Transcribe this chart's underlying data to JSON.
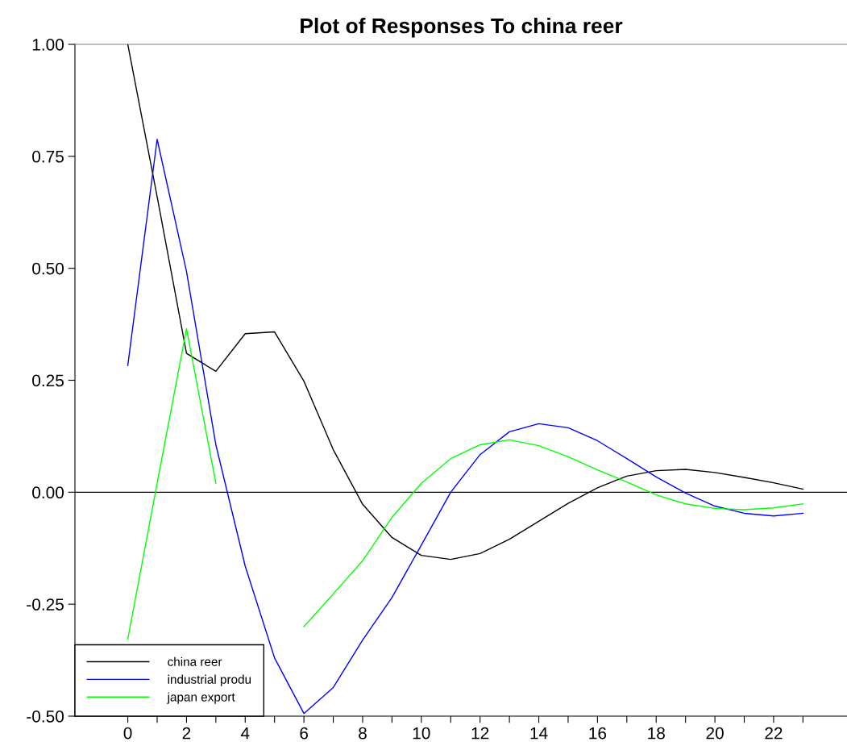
{
  "chart_data": {
    "type": "line",
    "title": "Plot of Responses To china reer",
    "x": [
      0,
      1,
      2,
      3,
      4,
      5,
      6,
      7,
      8,
      9,
      10,
      11,
      12,
      13,
      14,
      15,
      16,
      17,
      18,
      19,
      20,
      21,
      22,
      23
    ],
    "series": [
      {
        "name": "china reer",
        "color": "#000000",
        "values": [
          1.0,
          0.66,
          0.31,
          0.27,
          0.354,
          0.358,
          0.248,
          0.095,
          -0.027,
          -0.101,
          -0.141,
          -0.15,
          -0.137,
          -0.105,
          -0.065,
          -0.025,
          0.01,
          0.036,
          0.048,
          0.051,
          0.044,
          0.033,
          0.021,
          0.007
        ]
      },
      {
        "name": "industrial produ",
        "color": "#0000ff",
        "values": [
          0.283,
          0.788,
          0.493,
          0.106,
          -0.165,
          -0.37,
          -0.494,
          -0.436,
          -0.33,
          -0.235,
          -0.118,
          0.0,
          0.084,
          0.135,
          0.153,
          0.144,
          0.115,
          0.075,
          0.034,
          -0.002,
          -0.031,
          -0.047,
          -0.053,
          -0.047
        ]
      },
      {
        "name": "japan export",
        "color": "#00ff00",
        "values": [
          -0.328,
          0.02,
          0.365,
          0.02,
          null,
          null,
          -0.3,
          -0.227,
          -0.153,
          -0.056,
          0.02,
          0.075,
          0.106,
          0.117,
          0.104,
          0.079,
          0.05,
          0.023,
          -0.006,
          -0.026,
          -0.036,
          -0.039,
          -0.035,
          -0.026
        ]
      }
    ],
    "xlim": [
      -1.8,
      24.5
    ],
    "ylim": [
      -0.5,
      1.0
    ],
    "xticks": [
      0,
      {
        "value": 1,
        "label": null
      },
      2,
      {
        "value": 3,
        "label": null
      },
      4,
      {
        "value": 5,
        "label": null
      },
      6,
      {
        "value": 7,
        "label": null
      },
      8,
      {
        "value": 9,
        "label": null
      },
      10,
      {
        "value": 11,
        "label": null
      },
      12,
      {
        "value": 13,
        "label": null
      },
      14,
      {
        "value": 15,
        "label": null
      },
      16,
      {
        "value": 17,
        "label": null
      },
      18,
      {
        "value": 19,
        "label": null
      },
      20,
      {
        "value": 21,
        "label": null
      },
      22,
      {
        "value": 23,
        "label": null
      }
    ],
    "yticks": [
      {
        "value": -0.5,
        "label": "-0.50"
      },
      {
        "value": -0.25,
        "label": "-0.25"
      },
      {
        "value": 0,
        "label": "0.00"
      },
      {
        "value": 0.25,
        "label": "0.25"
      },
      {
        "value": 0.5,
        "label": "0.50"
      },
      {
        "value": 0.75,
        "label": "0.75"
      },
      {
        "value": 1.0,
        "label": "1.00"
      }
    ],
    "ref_lines": [
      {
        "axis": "y",
        "value": 0,
        "color": "#000000"
      }
    ],
    "grid": false,
    "legend": "bottom left",
    "marker": "none",
    "line_style": "solid"
  }
}
